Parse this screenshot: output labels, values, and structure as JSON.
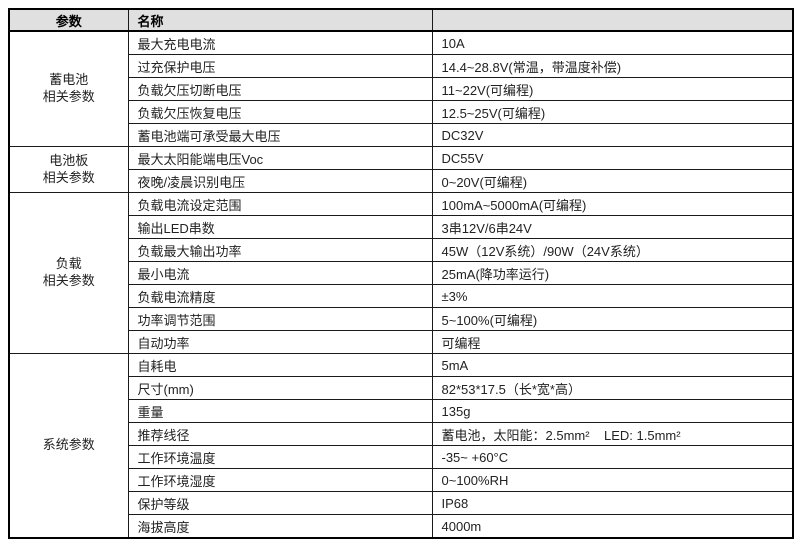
{
  "table": {
    "header": {
      "col1": "参数",
      "col2": "名称",
      "col3": ""
    },
    "header_bg": "#e0e0e0",
    "border_color": "#1a1a1a",
    "groups": [
      {
        "label": "蓄电池\n相关参数",
        "rows": [
          {
            "name": "最大充电电流",
            "value": "10A"
          },
          {
            "name": "过充保护电压",
            "value": "14.4~28.8V(常温，带温度补偿)"
          },
          {
            "name": "负载欠压切断电压",
            "value": "11~22V(可编程)"
          },
          {
            "name": "负载欠压恢复电压",
            "value": "12.5~25V(可编程)"
          },
          {
            "name": "蓄电池端可承受最大电压",
            "value": "DC32V"
          }
        ]
      },
      {
        "label": "电池板\n相关参数",
        "rows": [
          {
            "name": "最大太阳能端电压Voc",
            "value": "DC55V"
          },
          {
            "name": "夜晚/凌晨识别电压",
            "value": "0~20V(可编程)"
          }
        ]
      },
      {
        "label": "负载\n相关参数",
        "rows": [
          {
            "name": "负载电流设定范围",
            "value": "100mA~5000mA(可编程)"
          },
          {
            "name": "输出LED串数",
            "value": "3串12V/6串24V"
          },
          {
            "name": "负载最大输出功率",
            "value": "45W（12V系统）/90W（24V系统）"
          },
          {
            "name": "最小电流",
            "value": "25mA(降功率运行)"
          },
          {
            "name": "负载电流精度",
            "value": "±3%"
          },
          {
            "name": "功率调节范围",
            "value": "5~100%(可编程)"
          },
          {
            "name": "自动功率",
            "value": "可编程"
          }
        ]
      },
      {
        "label": "系统参数",
        "rows": [
          {
            "name": "自耗电",
            "value": "5mA"
          },
          {
            "name": "尺寸(mm)",
            "value": "82*53*17.5（长*宽*高）"
          },
          {
            "name": "重量",
            "value": "135g"
          },
          {
            "name": "推荐线径",
            "value": "蓄电池，太阳能：2.5mm²    LED: 1.5mm²"
          },
          {
            "name": "工作环境温度",
            "value": "-35~ +60°C"
          },
          {
            "name": "工作环境湿度",
            "value": "0~100%RH"
          },
          {
            "name": "保护等级",
            "value": "IP68"
          },
          {
            "name": "海拔高度",
            "value": "4000m"
          }
        ]
      }
    ]
  }
}
